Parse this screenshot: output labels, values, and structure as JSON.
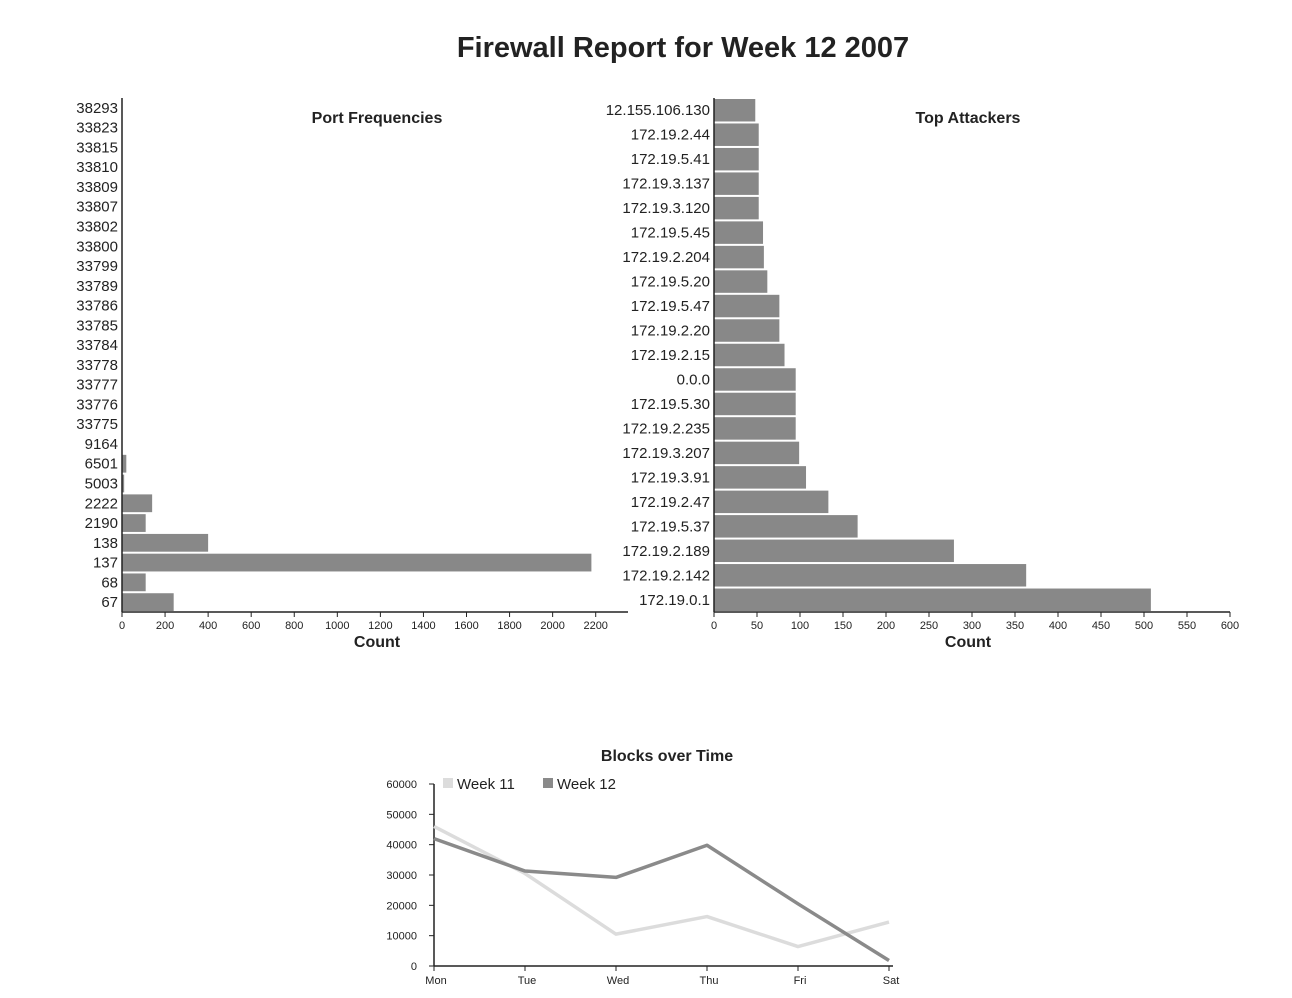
{
  "page_title": "Firewall Report for Week 12 2007",
  "colors": {
    "bar": "#888888",
    "week11": "#dcdcdc",
    "week12": "#8a8a8a",
    "axis": "#222222"
  },
  "chart_data": [
    {
      "id": "ports",
      "type": "bar",
      "orientation": "horizontal",
      "title": "Port Frequencies",
      "xlabel": "Count",
      "ylabel": "",
      "xlim": [
        0,
        2350
      ],
      "xticks": [
        0,
        200,
        400,
        600,
        800,
        1000,
        1200,
        1400,
        1600,
        1800,
        2000,
        2200
      ],
      "categories": [
        "38293",
        "33823",
        "33815",
        "33810",
        "33809",
        "33807",
        "33802",
        "33800",
        "33799",
        "33789",
        "33786",
        "33785",
        "33784",
        "33778",
        "33777",
        "33776",
        "33775",
        "9164",
        "6501",
        "5003",
        "2222",
        "2190",
        "138",
        "137",
        "68",
        "67"
      ],
      "values": [
        0,
        0,
        0,
        0,
        0,
        0,
        0,
        0,
        0,
        0,
        0,
        0,
        0,
        0,
        0,
        0,
        0,
        0,
        20,
        10,
        140,
        110,
        400,
        2180,
        110,
        240
      ]
    },
    {
      "id": "attackers",
      "type": "bar",
      "orientation": "horizontal",
      "title": "Top Attackers",
      "xlabel": "Count",
      "ylabel": "",
      "xlim": [
        0,
        600
      ],
      "xticks": [
        0,
        50,
        100,
        150,
        200,
        250,
        300,
        350,
        400,
        450,
        500,
        550,
        600
      ],
      "categories": [
        "12.155.106.130",
        "172.19.2.44",
        "172.19.5.41",
        "172.19.3.137",
        "172.19.3.120",
        "172.19.5.45",
        "172.19.2.204",
        "172.19.5.20",
        "172.19.5.47",
        "172.19.2.20",
        "172.19.2.15",
        "0.0.0",
        "172.19.5.30",
        "172.19.2.235",
        "172.19.3.207",
        "172.19.3.91",
        "172.19.2.47",
        "172.19.5.37",
        "172.19.2.189",
        "172.19.2.142",
        "172.19.0.1"
      ],
      "values": [
        48,
        52,
        52,
        52,
        52,
        57,
        58,
        62,
        76,
        76,
        82,
        95,
        95,
        95,
        99,
        107,
        133,
        167,
        279,
        363,
        508
      ]
    },
    {
      "id": "blocks",
      "type": "line",
      "title": "Blocks over Time",
      "xlabel": "",
      "ylabel": "",
      "ylim": [
        0,
        60000
      ],
      "yticks": [
        0,
        10000,
        20000,
        30000,
        40000,
        50000,
        60000
      ],
      "categories": [
        "Mon",
        "Tue",
        "Wed",
        "Thu",
        "Fri",
        "Sat"
      ],
      "legend_position": "top-left",
      "series": [
        {
          "name": "Week 11",
          "values": [
            46000,
            30500,
            10500,
            16300,
            6400,
            14500
          ]
        },
        {
          "name": "Week 12",
          "values": [
            42000,
            31300,
            29200,
            39800,
            20500,
            1800
          ]
        }
      ]
    }
  ]
}
